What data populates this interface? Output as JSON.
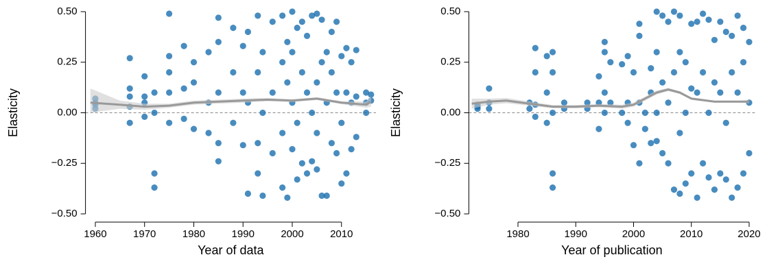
{
  "chart_data": [
    {
      "type": "scatter",
      "xlabel": "Year of data",
      "ylabel": "Elasticity",
      "color": "#1a6faf",
      "xlim": [
        1958,
        2017
      ],
      "ylim": [
        -0.5,
        0.5
      ],
      "xticks": [
        1960,
        1970,
        1980,
        1990,
        2000,
        2010
      ],
      "yticks": [
        {
          "value": -0.5,
          "label": "−0.50"
        },
        {
          "value": -0.25,
          "label": "−0.25"
        },
        {
          "value": 0,
          "label": "0.00"
        },
        {
          "value": 0.25,
          "label": "0.25"
        },
        {
          "value": 0.5,
          "label": "0.50"
        }
      ],
      "hline": 0,
      "x": [
        1960,
        1960,
        1960,
        1960,
        1967,
        1967,
        1967,
        1967,
        1967,
        1970,
        1970,
        1970,
        1970,
        1972,
        1972,
        1972,
        1972,
        1975,
        1975,
        1975,
        1975,
        1975,
        1978,
        1978,
        1978,
        1980,
        1980,
        1980,
        1983,
        1983,
        1983,
        1985,
        1985,
        1985,
        1985,
        1985,
        1988,
        1988,
        1988,
        1990,
        1990,
        1990,
        1991,
        1991,
        1991,
        1993,
        1993,
        1993,
        1993,
        1994,
        1994,
        1994,
        1996,
        1996,
        1996,
        1998,
        1998,
        1998,
        1998,
        1999,
        1999,
        1999,
        2000,
        2000,
        2000,
        2000,
        2001,
        2001,
        2001,
        2002,
        2002,
        2002,
        2003,
        2003,
        2003,
        2004,
        2004,
        2004,
        2005,
        2005,
        2005,
        2005,
        2006,
        2006,
        2006,
        2007,
        2007,
        2007,
        2008,
        2008,
        2008,
        2009,
        2009,
        2009,
        2010,
        2010,
        2010,
        2011,
        2011,
        2011,
        2012,
        2012,
        2012,
        2013,
        2013,
        2013,
        2015,
        2015,
        2015,
        2016,
        2016
      ],
      "values": [
        0.07,
        0.05,
        0.02,
        0.04,
        0.27,
        0.12,
        0.08,
        -0.05,
        0.03,
        0.18,
        0.08,
        -0.02,
        0.05,
        -0.3,
        -0.37,
        0.1,
        0.0,
        0.49,
        0.28,
        0.2,
        -0.05,
        0.1,
        0.33,
        0.12,
        -0.03,
        0.15,
        -0.08,
        0.25,
        0.3,
        -0.1,
        0.05,
        0.47,
        0.35,
        -0.24,
        -0.15,
        0.1,
        0.42,
        0.2,
        -0.05,
        0.33,
        -0.16,
        0.1,
        -0.4,
        0.4,
        0.05,
        0.48,
        -0.3,
        0.2,
        -0.15,
        -0.41,
        0.0,
        0.3,
        0.45,
        -0.2,
        0.1,
        -0.37,
        0.25,
        0.48,
        -0.1,
        -0.42,
        0.35,
        0.15,
        0.5,
        -0.18,
        0.05,
        0.3,
        -0.33,
        0.42,
        -0.05,
        0.2,
        -0.25,
        0.45,
        -0.3,
        0.1,
        0.38,
        -0.24,
        0.48,
        0.0,
        0.49,
        -0.28,
        0.15,
        -0.1,
        0.46,
        -0.41,
        0.25,
        -0.41,
        0.3,
        0.05,
        0.4,
        -0.15,
        0.2,
        -0.2,
        0.45,
        0.1,
        -0.35,
        0.28,
        -0.05,
        -0.3,
        0.32,
        0.1,
        -0.18,
        0.25,
        0.05,
        -0.12,
        0.31,
        0.08,
        0.1,
        0.05,
        0.0,
        0.09,
        0.06
      ],
      "smooth": {
        "color": "#999999",
        "band_color": "#cccccc",
        "x": [
          1959,
          1965,
          1970,
          1975,
          1980,
          1985,
          1990,
          1995,
          2000,
          2005,
          2010,
          2015,
          2016
        ],
        "values": [
          0.05,
          0.04,
          0.03,
          0.035,
          0.05,
          0.055,
          0.06,
          0.065,
          0.06,
          0.07,
          0.05,
          0.04,
          0.055
        ],
        "lower": [
          0.0,
          0.02,
          0.015,
          0.025,
          0.04,
          0.045,
          0.05,
          0.057,
          0.053,
          0.063,
          0.043,
          0.025,
          0.03
        ],
        "upper": [
          0.12,
          0.06,
          0.045,
          0.045,
          0.06,
          0.065,
          0.07,
          0.073,
          0.067,
          0.077,
          0.057,
          0.055,
          0.08
        ]
      }
    },
    {
      "type": "scatter",
      "xlabel": "Year of publication",
      "ylabel": "Elasticity",
      "color": "#1a6faf",
      "xlim": [
        1971.5,
        2021
      ],
      "ylim": [
        -0.5,
        0.5
      ],
      "xticks": [
        1980,
        1990,
        2000,
        2010,
        2020
      ],
      "yticks": [
        {
          "value": -0.5,
          "label": "−0.50"
        },
        {
          "value": -0.25,
          "label": "−0.25"
        },
        {
          "value": 0,
          "label": "0.00"
        },
        {
          "value": 0.25,
          "label": "0.25"
        },
        {
          "value": 0.5,
          "label": "0.50"
        }
      ],
      "hline": 0,
      "x": [
        1973,
        1973,
        1973,
        1975,
        1975,
        1975,
        1982,
        1982,
        1983,
        1983,
        1983,
        1983,
        1985,
        1985,
        1985,
        1986,
        1986,
        1986,
        1986,
        1986,
        1988,
        1988,
        1992,
        1992,
        1994,
        1994,
        1994,
        1995,
        1995,
        1995,
        1995,
        1996,
        1996,
        1998,
        1998,
        1999,
        1999,
        1999,
        2000,
        2000,
        2001,
        2001,
        2001,
        2001,
        2002,
        2002,
        2003,
        2003,
        2003,
        2004,
        2004,
        2004,
        2004,
        2005,
        2005,
        2005,
        2006,
        2006,
        2006,
        2007,
        2007,
        2007,
        2008,
        2008,
        2008,
        2008,
        2009,
        2009,
        2009,
        2010,
        2010,
        2010,
        2011,
        2011,
        2011,
        2012,
        2012,
        2012,
        2013,
        2013,
        2013,
        2014,
        2014,
        2014,
        2015,
        2015,
        2015,
        2016,
        2016,
        2016,
        2017,
        2017,
        2017,
        2018,
        2018,
        2018,
        2019,
        2019,
        2019,
        2020,
        2020,
        2020
      ],
      "values": [
        0.03,
        0.02,
        0.04,
        0.12,
        0.05,
        0.02,
        0.05,
        0.02,
        0.32,
        0.2,
        0.04,
        -0.02,
        0.28,
        0.1,
        -0.05,
        0.3,
        -0.3,
        -0.37,
        0.2,
        0.0,
        0.05,
        0.02,
        0.05,
        0.02,
        0.18,
        0.05,
        -0.08,
        0.35,
        0.3,
        0.1,
        0.0,
        0.25,
        0.05,
        0.24,
        0.0,
        0.28,
        0.05,
        -0.05,
        -0.16,
        0.2,
        0.44,
        0.38,
        -0.25,
        0.05,
        0.0,
        -0.08,
        -0.15,
        0.22,
        0.1,
        0.5,
        0.3,
        -0.14,
        0.0,
        0.48,
        -0.2,
        0.15,
        0.45,
        -0.25,
        0.05,
        0.5,
        -0.38,
        0.2,
        0.48,
        -0.4,
        -0.1,
        0.3,
        -0.35,
        0.25,
        0.0,
        0.44,
        -0.3,
        0.12,
        0.45,
        -0.42,
        0.1,
        0.49,
        -0.25,
        0.2,
        0.46,
        -0.32,
        0.0,
        0.36,
        -0.38,
        0.15,
        0.45,
        -0.3,
        0.1,
        0.4,
        -0.33,
        -0.05,
        0.38,
        -0.42,
        0.2,
        0.48,
        -0.37,
        0.1,
        0.42,
        -0.3,
        0.25,
        0.35,
        -0.2,
        0.05
      ],
      "smooth": {
        "color": "#999999",
        "band_color": "#cccccc",
        "x": [
          1972,
          1975,
          1978,
          1982,
          1986,
          1990,
          1994,
          1998,
          2000,
          2002,
          2004,
          2006,
          2008,
          2010,
          2014,
          2018,
          2020
        ],
        "values": [
          0.045,
          0.055,
          0.06,
          0.045,
          0.03,
          0.03,
          0.035,
          0.03,
          0.04,
          0.07,
          0.1,
          0.115,
          0.1,
          0.07,
          0.055,
          0.055,
          0.055
        ],
        "lower": [
          0.02,
          0.04,
          0.047,
          0.035,
          0.022,
          0.022,
          0.027,
          0.02,
          0.03,
          0.06,
          0.09,
          0.107,
          0.093,
          0.064,
          0.05,
          0.05,
          0.047
        ],
        "upper": [
          0.07,
          0.07,
          0.073,
          0.055,
          0.038,
          0.038,
          0.043,
          0.04,
          0.05,
          0.08,
          0.11,
          0.123,
          0.107,
          0.076,
          0.06,
          0.06,
          0.063
        ]
      }
    }
  ]
}
